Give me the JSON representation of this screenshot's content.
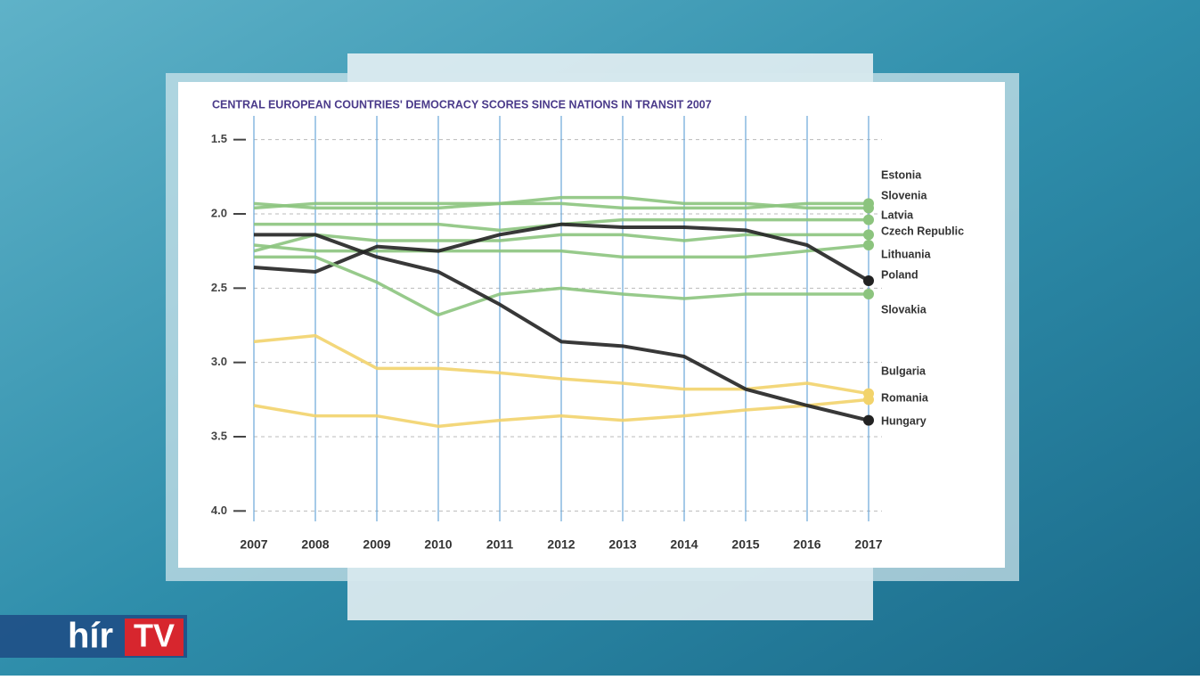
{
  "chart_data": {
    "type": "line",
    "title": "CENTRAL EUROPEAN COUNTRIES' DEMOCRACY SCORES SINCE NATIONS IN TRANSIT 2007",
    "categories": [
      "2007",
      "2008",
      "2009",
      "2010",
      "2011",
      "2012",
      "2013",
      "2014",
      "2015",
      "2016",
      "2017"
    ],
    "ylim": [
      1.4,
      4.1
    ],
    "y_inverted": true,
    "yticks": [
      1.5,
      {
        "value": 2,
        "label": "2.0"
      },
      2.5,
      {
        "value": 3,
        "label": "3.0"
      },
      3.5,
      {
        "value": 4,
        "label": "4.0"
      }
    ],
    "grid": true,
    "series": [
      {
        "name": "Estonia",
        "color": "#8cc47e",
        "values": [
          1.93,
          1.96,
          1.96,
          1.96,
          1.93,
          1.93,
          1.96,
          1.96,
          1.96,
          1.93,
          1.93
        ]
      },
      {
        "name": "Slovenia",
        "color": "#8cc47e",
        "values": [
          1.96,
          1.93,
          1.93,
          1.93,
          1.93,
          1.89,
          1.89,
          1.93,
          1.93,
          1.96,
          1.96
        ]
      },
      {
        "name": "Latvia",
        "color": "#8cc47e",
        "values": [
          2.07,
          2.07,
          2.07,
          2.07,
          2.11,
          2.07,
          2.04,
          2.04,
          2.04,
          2.04,
          2.04
        ]
      },
      {
        "name": "Czech Republic",
        "color": "#8cc47e",
        "values": [
          2.25,
          2.14,
          2.18,
          2.18,
          2.18,
          2.14,
          2.14,
          2.18,
          2.14,
          2.14,
          2.14
        ]
      },
      {
        "name": "Lithuania",
        "color": "#8cc47e",
        "values": [
          2.21,
          2.25,
          2.25,
          2.25,
          2.25,
          2.25,
          2.29,
          2.29,
          2.29,
          2.25,
          2.21
        ]
      },
      {
        "name": "Poland",
        "color": "#222222",
        "values": [
          2.36,
          2.39,
          2.22,
          2.25,
          2.14,
          2.07,
          2.09,
          2.09,
          2.11,
          2.21,
          2.45
        ]
      },
      {
        "name": "Slovakia",
        "color": "#8cc47e",
        "values": [
          2.29,
          2.29,
          2.46,
          2.68,
          2.54,
          2.5,
          2.54,
          2.57,
          2.54,
          2.54,
          2.54
        ]
      },
      {
        "name": "Bulgaria",
        "color": "#f2d36b",
        "values": [
          2.86,
          2.82,
          3.04,
          3.04,
          3.07,
          3.11,
          3.14,
          3.18,
          3.18,
          3.14,
          3.21
        ]
      },
      {
        "name": "Romania",
        "color": "#f2d36b",
        "values": [
          3.29,
          3.36,
          3.36,
          3.43,
          3.39,
          3.36,
          3.39,
          3.36,
          3.32,
          3.29,
          3.25
        ]
      },
      {
        "name": "Hungary",
        "color": "#222222",
        "values": [
          2.14,
          2.14,
          2.29,
          2.39,
          2.61,
          2.86,
          2.89,
          2.96,
          3.18,
          3.29,
          3.39
        ]
      }
    ]
  },
  "logo": {
    "part1": "hír",
    "part2": "TV"
  }
}
